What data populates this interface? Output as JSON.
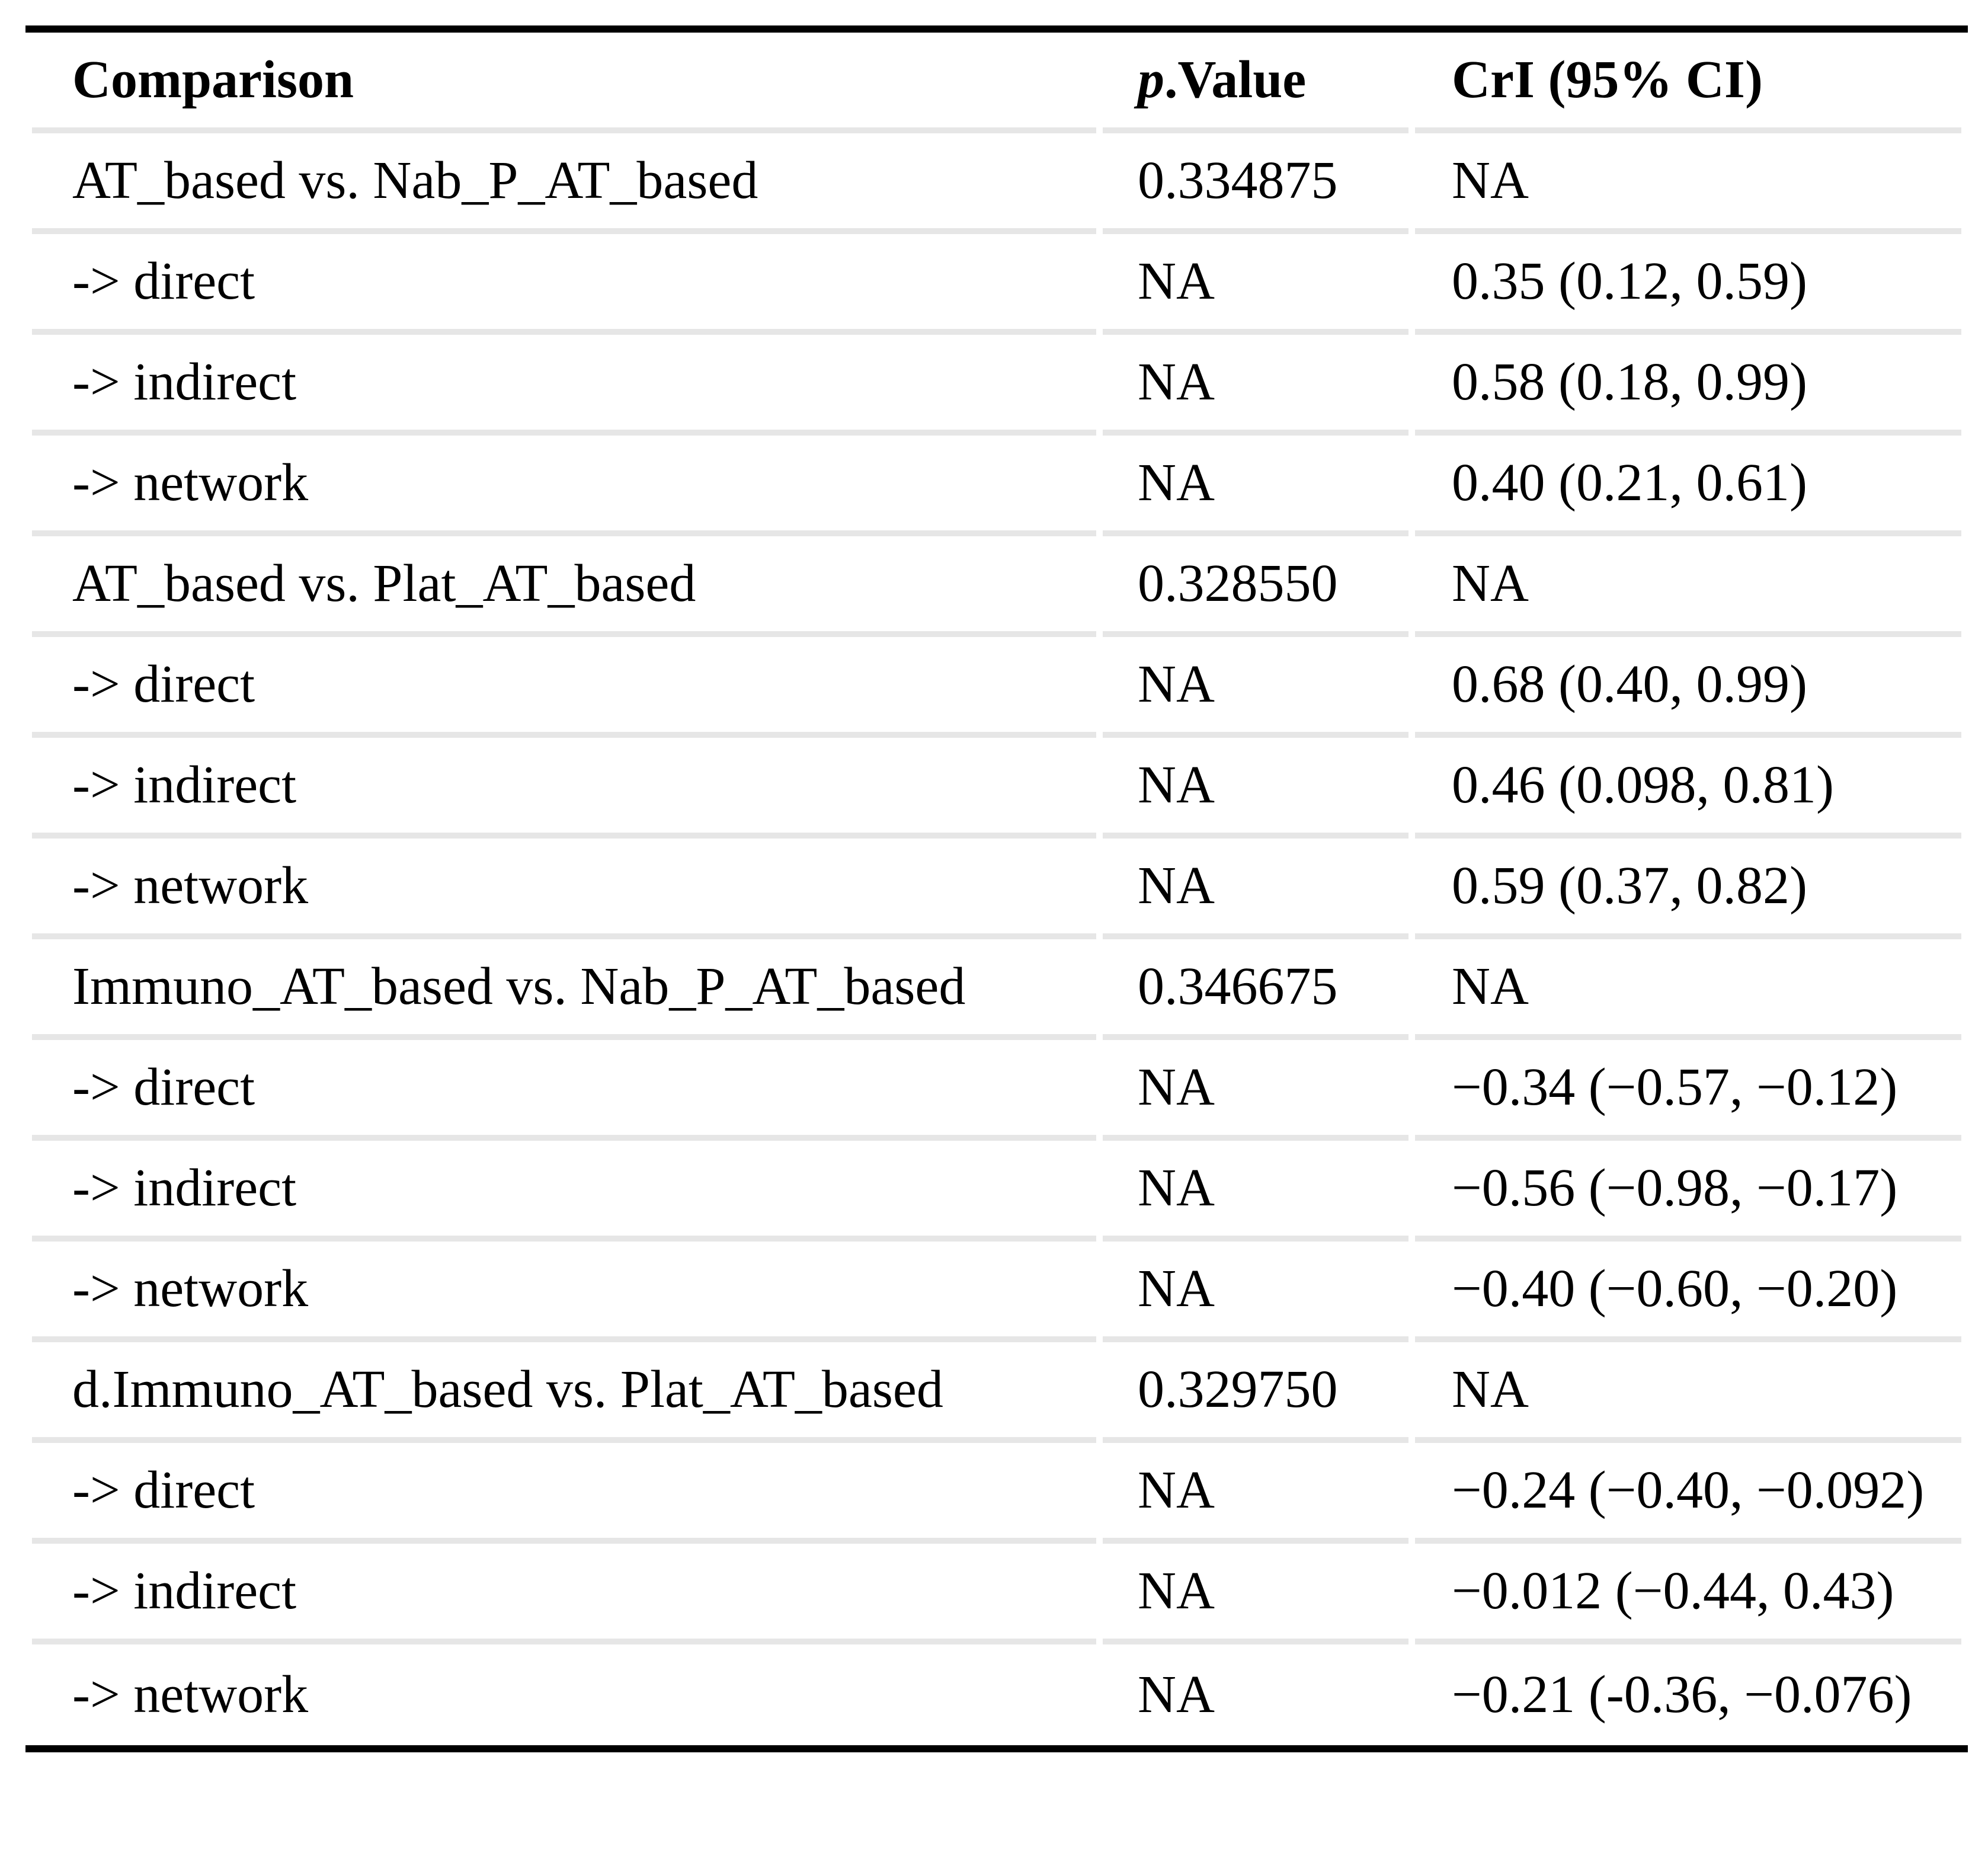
{
  "table": {
    "header": {
      "comparison": "Comparison",
      "p_italic": "p",
      "p_rest": ".Value",
      "cri": "CrI (95% CI)"
    },
    "rows": [
      {
        "comparison": "AT_based vs. Nab_P_AT_based",
        "p_value": "0.334875",
        "cri": "NA"
      },
      {
        "comparison": "-> direct",
        "p_value": "NA",
        "cri": "0.35 (0.12, 0.59)"
      },
      {
        "comparison": "-> indirect",
        "p_value": "NA",
        "cri": "0.58 (0.18, 0.99)"
      },
      {
        "comparison": "-> network",
        "p_value": "NA",
        "cri": "0.40 (0.21, 0.61)"
      },
      {
        "comparison": "AT_based vs. Plat_AT_based",
        "p_value": "0.328550",
        "cri": "NA"
      },
      {
        "comparison": "-> direct",
        "p_value": "NA",
        "cri": "0.68 (0.40, 0.99)"
      },
      {
        "comparison": "-> indirect",
        "p_value": "NA",
        "cri": "0.46 (0.098, 0.81)"
      },
      {
        "comparison": "-> network",
        "p_value": "NA",
        "cri": "0.59 (0.37, 0.82)"
      },
      {
        "comparison": "Immuno_AT_based vs. Nab_P_AT_based",
        "p_value": "0.346675",
        "cri": "NA"
      },
      {
        "comparison": "-> direct",
        "p_value": "NA",
        "cri": "−0.34 (−0.57, −0.12)"
      },
      {
        "comparison": "-> indirect",
        "p_value": "NA",
        "cri": "−0.56 (−0.98, −0.17)"
      },
      {
        "comparison": "-> network",
        "p_value": "NA",
        "cri": "−0.40 (−0.60, −0.20)"
      },
      {
        "comparison": "d.Immuno_AT_based vs. Plat_AT_based",
        "p_value": "0.329750",
        "cri": "NA"
      },
      {
        "comparison": "-> direct",
        "p_value": "NA",
        "cri": "−0.24 (−0.40, −0.092)"
      },
      {
        "comparison": "-> indirect",
        "p_value": "NA",
        "cri": "−0.012 (−0.44, 0.43)"
      },
      {
        "comparison": "-> network",
        "p_value": "NA",
        "cri": "−0.21 (-0.36, −0.076)"
      }
    ]
  },
  "colors": {
    "rule": "#000000",
    "row_separator": "#e6e6e6",
    "text": "#000000",
    "background": "#ffffff"
  }
}
